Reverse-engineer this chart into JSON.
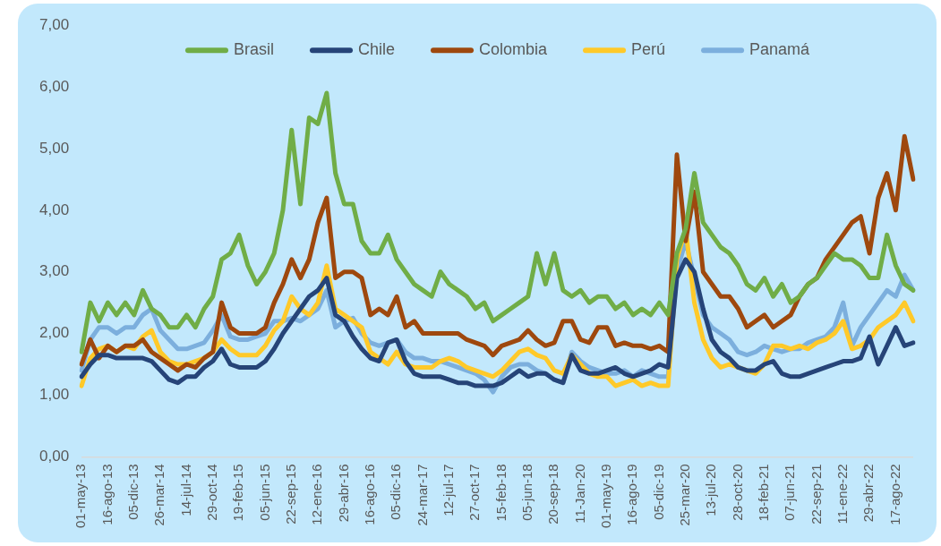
{
  "chart_data": {
    "type": "line",
    "categories": [
      "01-may-13",
      null,
      null,
      "16-ago-13",
      null,
      null,
      "05-dic-13",
      null,
      null,
      "26-mar-14",
      null,
      null,
      "14-jul-14",
      null,
      null,
      "29-oct-14",
      null,
      null,
      "19-feb-15",
      null,
      null,
      "05-jun-15",
      null,
      null,
      "22-sep-15",
      null,
      null,
      "12-ene-16",
      null,
      null,
      "29-abr-16",
      null,
      null,
      "16-ago-16",
      null,
      null,
      "05-dic-16",
      null,
      null,
      "24-mar-17",
      null,
      null,
      "12-jul-17",
      null,
      null,
      "27-oct-17",
      null,
      null,
      "15-feb-18",
      null,
      null,
      "05-jun-18",
      null,
      null,
      "20-sep-18",
      null,
      null,
      "11-Jan-20",
      null,
      null,
      "01-may-19",
      null,
      null,
      "16-ago-19",
      null,
      null,
      "05-dic-19",
      null,
      null,
      "25-mar-20",
      null,
      null,
      "13-jul-20",
      null,
      null,
      "28-oct-20",
      null,
      null,
      "18-feb-21",
      null,
      null,
      "07-jun-21",
      null,
      null,
      "22-sep-21",
      null,
      null,
      "11-ene-22",
      null,
      null,
      "29-abr-22",
      null,
      null,
      "17-ago-22",
      null,
      null
    ],
    "series": [
      {
        "name": "Brasil",
        "color": "#70ad47",
        "values": [
          1.7,
          2.5,
          2.2,
          2.5,
          2.3,
          2.5,
          2.3,
          2.7,
          2.4,
          2.3,
          2.1,
          2.1,
          2.3,
          2.1,
          2.4,
          2.6,
          3.2,
          3.3,
          3.6,
          3.1,
          2.8,
          3.0,
          3.3,
          4.0,
          5.3,
          4.1,
          5.5,
          5.4,
          5.9,
          4.6,
          4.1,
          4.1,
          3.5,
          3.3,
          3.3,
          3.6,
          3.2,
          3.0,
          2.8,
          2.7,
          2.6,
          3.0,
          2.8,
          2.7,
          2.6,
          2.4,
          2.5,
          2.2,
          2.3,
          2.4,
          2.5,
          2.6,
          3.3,
          2.8,
          3.3,
          2.7,
          2.6,
          2.7,
          2.5,
          2.6,
          2.6,
          2.4,
          2.5,
          2.3,
          2.4,
          2.3,
          2.5,
          2.3,
          3.3,
          3.7,
          4.6,
          3.8,
          3.6,
          3.4,
          3.3,
          3.1,
          2.8,
          2.7,
          2.9,
          2.6,
          2.8,
          2.5,
          2.6,
          2.8,
          2.9,
          3.1,
          3.3,
          3.2,
          3.2,
          3.1,
          2.9,
          2.9,
          3.6,
          3.1,
          2.8,
          2.7
        ]
      },
      {
        "name": "Chile",
        "color": "#264478",
        "values": [
          1.3,
          1.5,
          1.65,
          1.65,
          1.6,
          1.6,
          1.6,
          1.6,
          1.55,
          1.4,
          1.25,
          1.2,
          1.3,
          1.3,
          1.45,
          1.55,
          1.75,
          1.5,
          1.45,
          1.45,
          1.45,
          1.55,
          1.75,
          2.0,
          2.2,
          2.4,
          2.6,
          2.7,
          2.9,
          2.3,
          2.2,
          1.95,
          1.75,
          1.6,
          1.55,
          1.85,
          1.9,
          1.55,
          1.35,
          1.3,
          1.3,
          1.3,
          1.25,
          1.2,
          1.2,
          1.15,
          1.15,
          1.15,
          1.2,
          1.3,
          1.4,
          1.3,
          1.35,
          1.35,
          1.25,
          1.2,
          1.65,
          1.4,
          1.35,
          1.35,
          1.4,
          1.45,
          1.35,
          1.3,
          1.35,
          1.4,
          1.5,
          1.45,
          2.9,
          3.2,
          3.0,
          2.4,
          1.9,
          1.7,
          1.6,
          1.45,
          1.4,
          1.4,
          1.5,
          1.55,
          1.35,
          1.3,
          1.3,
          1.35,
          1.4,
          1.45,
          1.5,
          1.55,
          1.55,
          1.6,
          1.95,
          1.5,
          1.8,
          2.1,
          1.8,
          1.85
        ]
      },
      {
        "name": "Colombia",
        "color": "#9e480e",
        "values": [
          1.5,
          1.9,
          1.6,
          1.8,
          1.7,
          1.8,
          1.8,
          1.9,
          1.7,
          1.6,
          1.5,
          1.4,
          1.5,
          1.45,
          1.6,
          1.7,
          2.5,
          2.1,
          2.0,
          2.0,
          2.0,
          2.1,
          2.5,
          2.8,
          3.2,
          2.9,
          3.2,
          3.8,
          4.2,
          2.9,
          3.0,
          3.0,
          2.9,
          2.3,
          2.4,
          2.3,
          2.6,
          2.1,
          2.2,
          2.0,
          2.0,
          2.0,
          2.0,
          2.0,
          1.9,
          1.85,
          1.8,
          1.65,
          1.8,
          1.85,
          1.9,
          2.05,
          1.9,
          1.8,
          1.85,
          2.2,
          2.2,
          1.9,
          1.85,
          2.1,
          2.1,
          1.8,
          1.85,
          1.8,
          1.8,
          1.75,
          1.8,
          1.7,
          4.9,
          3.5,
          4.3,
          3.0,
          2.8,
          2.6,
          2.6,
          2.4,
          2.1,
          2.2,
          2.3,
          2.1,
          2.2,
          2.3,
          2.6,
          2.8,
          2.9,
          3.2,
          3.4,
          3.6,
          3.8,
          3.9,
          3.3,
          4.2,
          4.6,
          4.0,
          5.2,
          4.5
        ]
      },
      {
        "name": "Perú",
        "color": "#ffc929",
        "values": [
          1.15,
          1.6,
          1.75,
          1.8,
          1.7,
          1.8,
          1.75,
          1.95,
          2.05,
          1.7,
          1.55,
          1.5,
          1.5,
          1.55,
          1.6,
          1.7,
          1.9,
          1.75,
          1.65,
          1.65,
          1.65,
          1.8,
          2.05,
          2.2,
          2.6,
          2.4,
          2.3,
          2.5,
          3.1,
          2.4,
          2.3,
          2.2,
          2.1,
          1.7,
          1.6,
          1.5,
          1.7,
          1.5,
          1.45,
          1.45,
          1.45,
          1.55,
          1.6,
          1.55,
          1.45,
          1.4,
          1.35,
          1.3,
          1.4,
          1.55,
          1.7,
          1.75,
          1.65,
          1.6,
          1.4,
          1.35,
          1.65,
          1.5,
          1.35,
          1.3,
          1.3,
          1.15,
          1.2,
          1.25,
          1.15,
          1.2,
          1.15,
          1.15,
          3.2,
          3.7,
          2.5,
          1.9,
          1.6,
          1.45,
          1.5,
          1.45,
          1.4,
          1.35,
          1.5,
          1.8,
          1.8,
          1.75,
          1.8,
          1.75,
          1.85,
          1.9,
          2.0,
          2.2,
          1.75,
          1.8,
          1.9,
          2.1,
          2.2,
          2.3,
          2.5,
          2.2
        ]
      },
      {
        "name": "Panamá",
        "color": "#7cafdd",
        "values": [
          1.4,
          1.9,
          2.1,
          2.1,
          2.0,
          2.1,
          2.1,
          2.3,
          2.4,
          2.05,
          1.9,
          1.75,
          1.75,
          1.8,
          1.85,
          2.05,
          2.3,
          1.95,
          1.9,
          1.9,
          1.95,
          2.0,
          2.2,
          2.2,
          2.25,
          2.2,
          2.3,
          2.4,
          2.7,
          2.1,
          2.2,
          2.25,
          2.0,
          1.85,
          1.8,
          1.85,
          1.9,
          1.7,
          1.6,
          1.6,
          1.55,
          1.55,
          1.5,
          1.45,
          1.4,
          1.35,
          1.25,
          1.05,
          1.3,
          1.45,
          1.5,
          1.5,
          1.4,
          1.35,
          1.25,
          1.2,
          1.7,
          1.55,
          1.45,
          1.4,
          1.35,
          1.35,
          1.4,
          1.3,
          1.4,
          1.35,
          1.3,
          1.3,
          3.0,
          3.5,
          2.9,
          2.3,
          2.1,
          2.0,
          1.9,
          1.7,
          1.65,
          1.7,
          1.8,
          1.75,
          1.7,
          1.75,
          1.75,
          1.85,
          1.9,
          1.95,
          2.1,
          2.5,
          1.8,
          2.1,
          2.3,
          2.5,
          2.7,
          2.6,
          2.95,
          2.7
        ]
      }
    ],
    "ylim": [
      0,
      7
    ],
    "yticks": [
      {
        "value": 0,
        "label": "0,00"
      },
      {
        "value": 1,
        "label": "1,00"
      },
      {
        "value": 2,
        "label": "2,00"
      },
      {
        "value": 3,
        "label": "3,00"
      },
      {
        "value": 4,
        "label": "4,00"
      },
      {
        "value": 5,
        "label": "5,00"
      },
      {
        "value": 6,
        "label": "6,00"
      },
      {
        "value": 7,
        "label": "7,00"
      }
    ],
    "legend": "top",
    "marker": "none",
    "line_style": "solid"
  }
}
